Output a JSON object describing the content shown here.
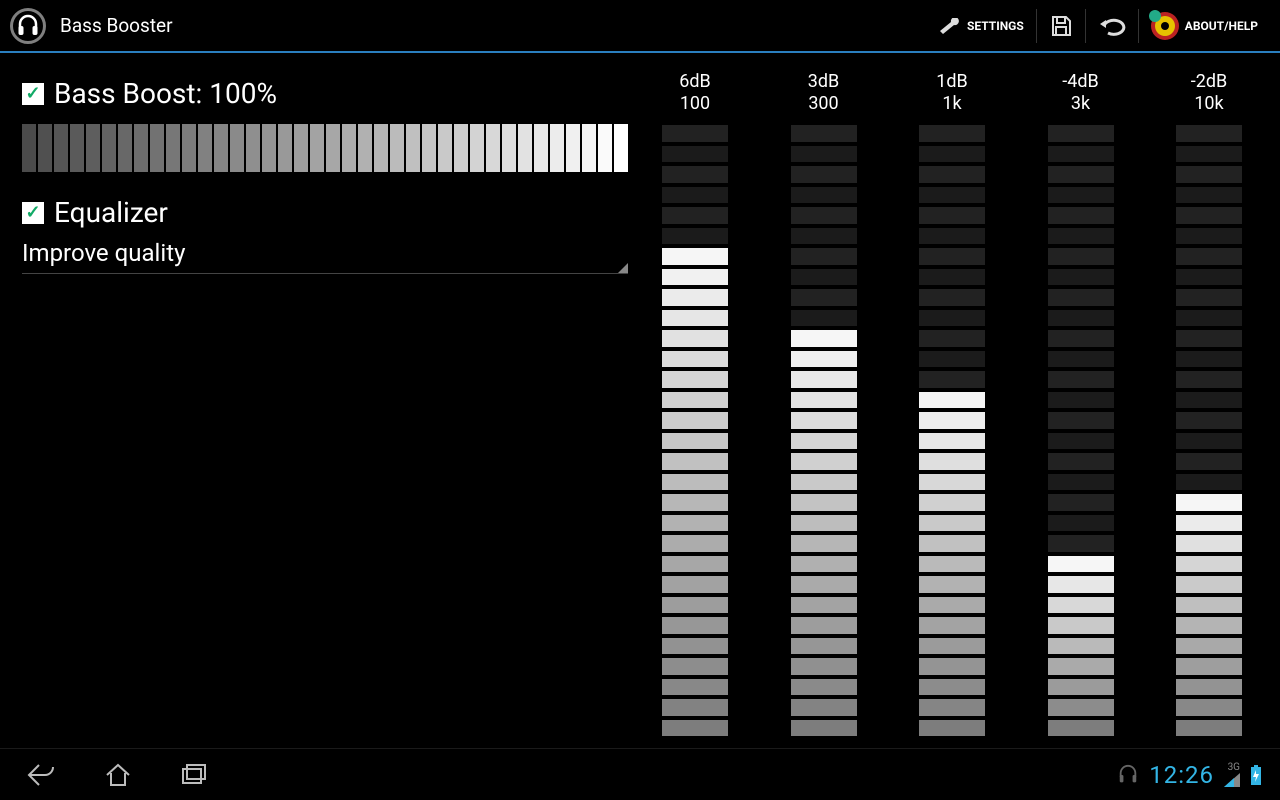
{
  "app": {
    "title": "Bass Booster"
  },
  "actionbar": {
    "settings": "SETTINGS",
    "about": "ABOUT/HELP"
  },
  "left": {
    "bassBoost": {
      "checked": true,
      "label": "Bass Boost: 100%",
      "percent": 100,
      "segments": 38
    },
    "equalizer": {
      "checked": true,
      "label": "Equalizer"
    },
    "preset": "Improve quality"
  },
  "eq": {
    "totalSegments": 30,
    "min_db": -15,
    "max_db": 15,
    "colors": {
      "active_top": "#f6f6f6",
      "active_bottom": "#7d7d7d",
      "inactive": "#222222",
      "inactive2": "#1b1b1b"
    },
    "bands": [
      {
        "db": "6dB",
        "freq": "100",
        "activeSegments": 24
      },
      {
        "db": "3dB",
        "freq": "300",
        "activeSegments": 20
      },
      {
        "db": "1dB",
        "freq": "1k",
        "activeSegments": 17
      },
      {
        "db": "-4dB",
        "freq": "3k",
        "activeSegments": 9
      },
      {
        "db": "-2dB",
        "freq": "10k",
        "activeSegments": 12
      }
    ]
  },
  "boostBar": {
    "color_start": "#4b4b4b",
    "color_end": "#ffffff"
  },
  "status": {
    "clock": "12:26",
    "network": "3G"
  },
  "colors": {
    "accent": "#33b5e5",
    "topbar_underline": "#2a7fbf",
    "background": "#000000",
    "text": "#ffffff"
  }
}
